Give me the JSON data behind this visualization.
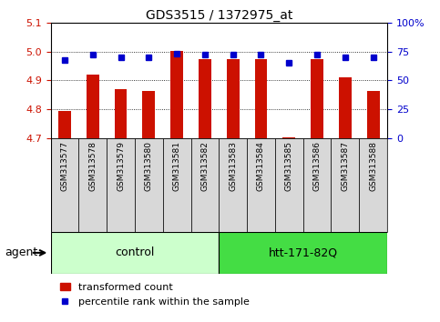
{
  "title": "GDS3515 / 1372975_at",
  "samples": [
    "GSM313577",
    "GSM313578",
    "GSM313579",
    "GSM313580",
    "GSM313581",
    "GSM313582",
    "GSM313583",
    "GSM313584",
    "GSM313585",
    "GSM313586",
    "GSM313587",
    "GSM313588"
  ],
  "transformed_count": [
    4.795,
    4.92,
    4.87,
    4.865,
    5.002,
    4.975,
    4.975,
    4.975,
    4.705,
    4.975,
    4.91,
    4.865
  ],
  "percentile_rank": [
    68,
    72,
    70,
    70,
    73,
    72,
    72,
    72,
    65,
    72,
    70,
    70
  ],
  "ylim_left": [
    4.7,
    5.1
  ],
  "ylim_right": [
    0,
    100
  ],
  "yticks_left": [
    4.7,
    4.8,
    4.9,
    5.0,
    5.1
  ],
  "yticks_right": [
    0,
    25,
    50,
    75,
    100
  ],
  "ytick_labels_right": [
    "0",
    "25",
    "50",
    "75",
    "100%"
  ],
  "baseline": 4.7,
  "bar_color": "#cc1100",
  "dot_color": "#0000cc",
  "ctrl_color": "#ccffcc",
  "htt_color": "#44dd44",
  "agent_label": "agent",
  "grid_color": "black",
  "background_color": "#ffffff",
  "tick_label_color_left": "#cc1100",
  "tick_label_color_right": "#0000cc",
  "ctrl_range": [
    0,
    5
  ],
  "htt_range": [
    6,
    11
  ],
  "ctrl_label": "control",
  "htt_label": "htt-171-82Q"
}
